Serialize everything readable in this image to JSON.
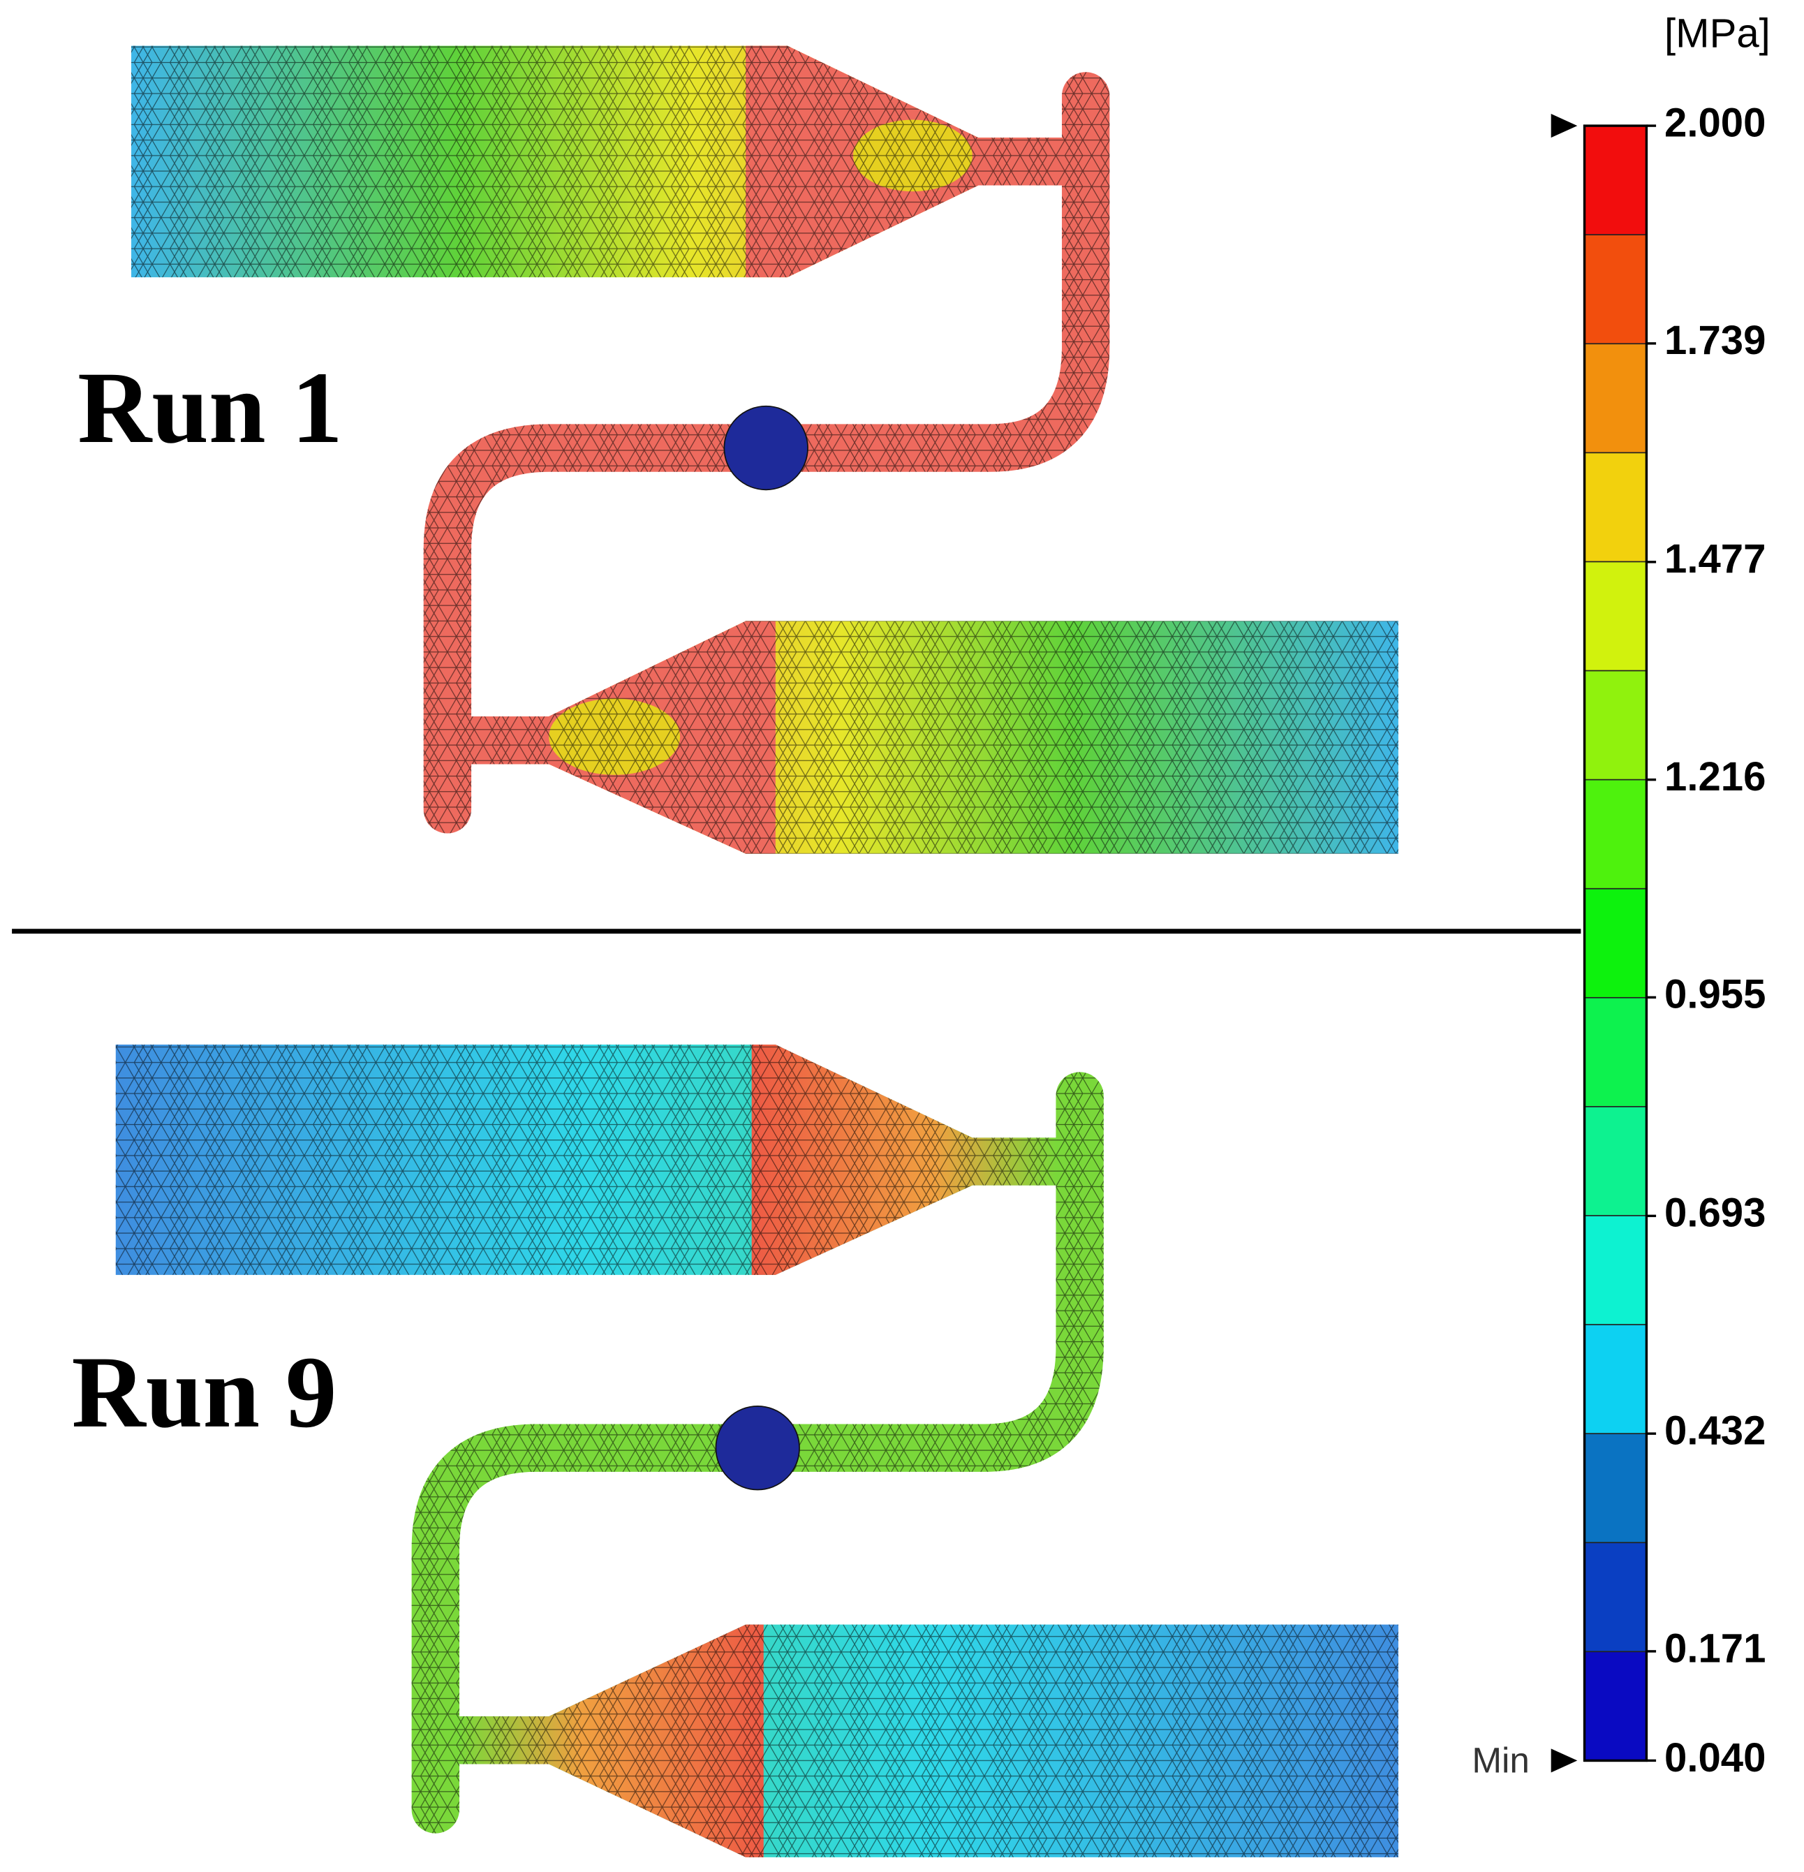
{
  "runs": [
    "Run 1",
    "Run 9"
  ],
  "colorbar": {
    "unit": "[MPa]",
    "min_label": "Min",
    "ticks": [
      {
        "value": 2.0,
        "label": "2.000"
      },
      {
        "value": 1.739,
        "label": "1.739"
      },
      {
        "value": 1.477,
        "label": "1.477"
      },
      {
        "value": 1.216,
        "label": "1.216"
      },
      {
        "value": 0.955,
        "label": "0.955"
      },
      {
        "value": 0.693,
        "label": "0.693"
      },
      {
        "value": 0.432,
        "label": "0.432"
      },
      {
        "value": 0.171,
        "label": "0.171"
      },
      {
        "value": 0.04,
        "label": "0.040"
      }
    ]
  }
}
